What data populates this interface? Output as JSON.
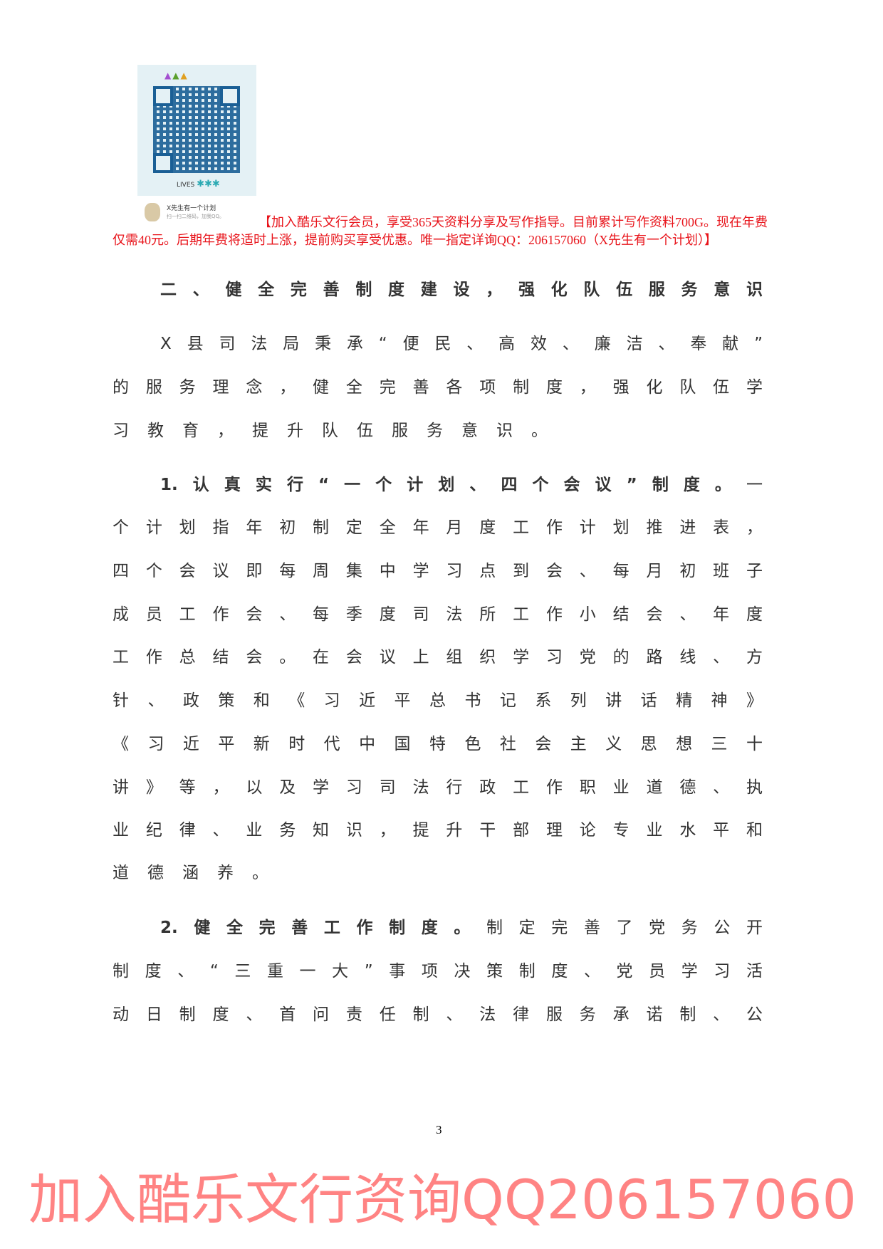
{
  "qr_card": {
    "caption_title": "X先生有一个计划",
    "caption_sub": "扫一扫二维码，加我QQ。",
    "lives_label": "LIVES"
  },
  "promo_text": "【加入酷乐文行会员，享受365天资料分享及写作指导。目前累计写作资料700G。现在年费仅需40元。后期年费将适时上涨，提前购买享受优惠。唯一指定详询QQ：206157060（X先生有一个计划）】",
  "watermark": "加入酷乐文行资询QQ206157060",
  "lines": [
    {
      "bold": "二、健全完善制度建设，强化队伍服务意识",
      "text": ""
    },
    {
      "bold": "",
      "text": "X县司法局秉承“便民、高效、廉洁、奉献”"
    },
    {
      "bold": "",
      "text": "的服务理念，健全完善各项制度，强化队伍学"
    },
    {
      "bold": "",
      "text": "习教育，提升队伍服务意识。"
    },
    {
      "bold": "1.认真实行“一个计划、四个会议”制度。",
      "text": "一"
    },
    {
      "bold": "",
      "text": "个计划指年初制定全年月度工作计划推进表，"
    },
    {
      "bold": "",
      "text": "四个会议即每周集中学习点到会、每月初班子"
    },
    {
      "bold": "",
      "text": "成员工作会、每季度司法所工作小结会、年度"
    },
    {
      "bold": "",
      "text": "工作总结会。在会议上组织学习党的路线、方"
    },
    {
      "bold": "",
      "text": "针、政策和《习近平总书记系列讲话精神》"
    },
    {
      "bold": "",
      "text": "《习近平新时代中国特色社会主义思想三十"
    },
    {
      "bold": "",
      "text": "讲》等，以及学习司法行政工作职业道德、执"
    },
    {
      "bold": "",
      "text": "业纪律、业务知识，提升干部理论专业水平和"
    },
    {
      "bold": "",
      "text": "道德涵养。"
    },
    {
      "bold": "2.健全完善工作制度。",
      "text": "制定完善了党务公开"
    },
    {
      "bold": "",
      "text": "制度、“三重一大”事项决策制度、党员学习活"
    },
    {
      "bold": "",
      "text": "动日制度、首问责任制、法律服务承诺制、公"
    }
  ],
  "page_number": "3",
  "colors": {
    "promo": "#e8141b",
    "watermark": "#ff7a7a",
    "body_text": "#333333"
  }
}
